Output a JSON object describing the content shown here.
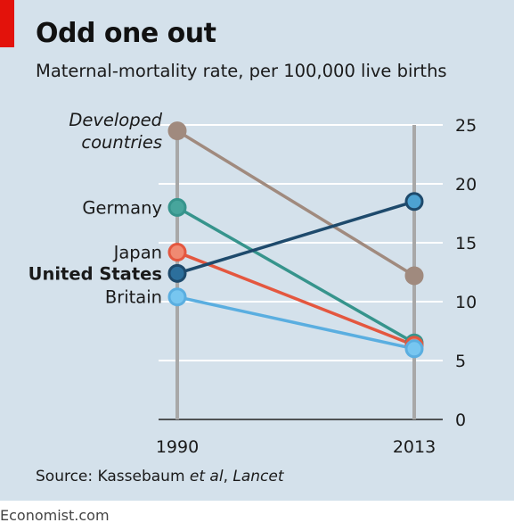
{
  "title": "Odd one out",
  "subtitle": "Maternal-mortality rate, per 100,000 live births",
  "source": {
    "prefix": "Source: Kassebaum ",
    "italic1": "et al",
    "middle": ", ",
    "italic2": "Lancet"
  },
  "footer": "Economist.com",
  "colors": {
    "background": "#d4e1eb",
    "accent": "#e3120b",
    "gridline": "#ffffff",
    "axis_line": "#a8a8a8"
  },
  "chart_data": {
    "type": "line",
    "subtype": "slope",
    "x": [
      "1990",
      "2013"
    ],
    "ylim": [
      0,
      25
    ],
    "yticks": [
      0,
      5,
      10,
      15,
      20,
      25
    ],
    "y_axis_side": "right",
    "grid": true,
    "series": [
      {
        "name": "Developed countries",
        "values": [
          24.5,
          12.2
        ],
        "color": "#a08a7e",
        "fill": "#a08a7e",
        "label_style": "italic",
        "label_lines": [
          "Developed",
          "countries"
        ]
      },
      {
        "name": "Germany",
        "values": [
          18.0,
          6.5
        ],
        "color": "#36948c",
        "fill": "#47a59c",
        "label_style": "normal",
        "label_lines": [
          "Germany"
        ]
      },
      {
        "name": "Japan",
        "values": [
          14.2,
          6.3
        ],
        "color": "#e4573f",
        "fill": "#f08a72",
        "label_style": "normal",
        "label_lines": [
          "Japan"
        ]
      },
      {
        "name": "United States",
        "values": [
          12.4,
          18.5
        ],
        "color": "#1e4a6c",
        "fill": "#2c6f9c",
        "fill_end": "#4da2d2",
        "label_style": "bold",
        "label_lines": [
          "United States"
        ]
      },
      {
        "name": "Britain",
        "values": [
          10.4,
          6.0
        ],
        "color": "#5aaee0",
        "fill": "#77c6f0",
        "label_style": "normal",
        "label_lines": [
          "Britain"
        ]
      }
    ]
  }
}
